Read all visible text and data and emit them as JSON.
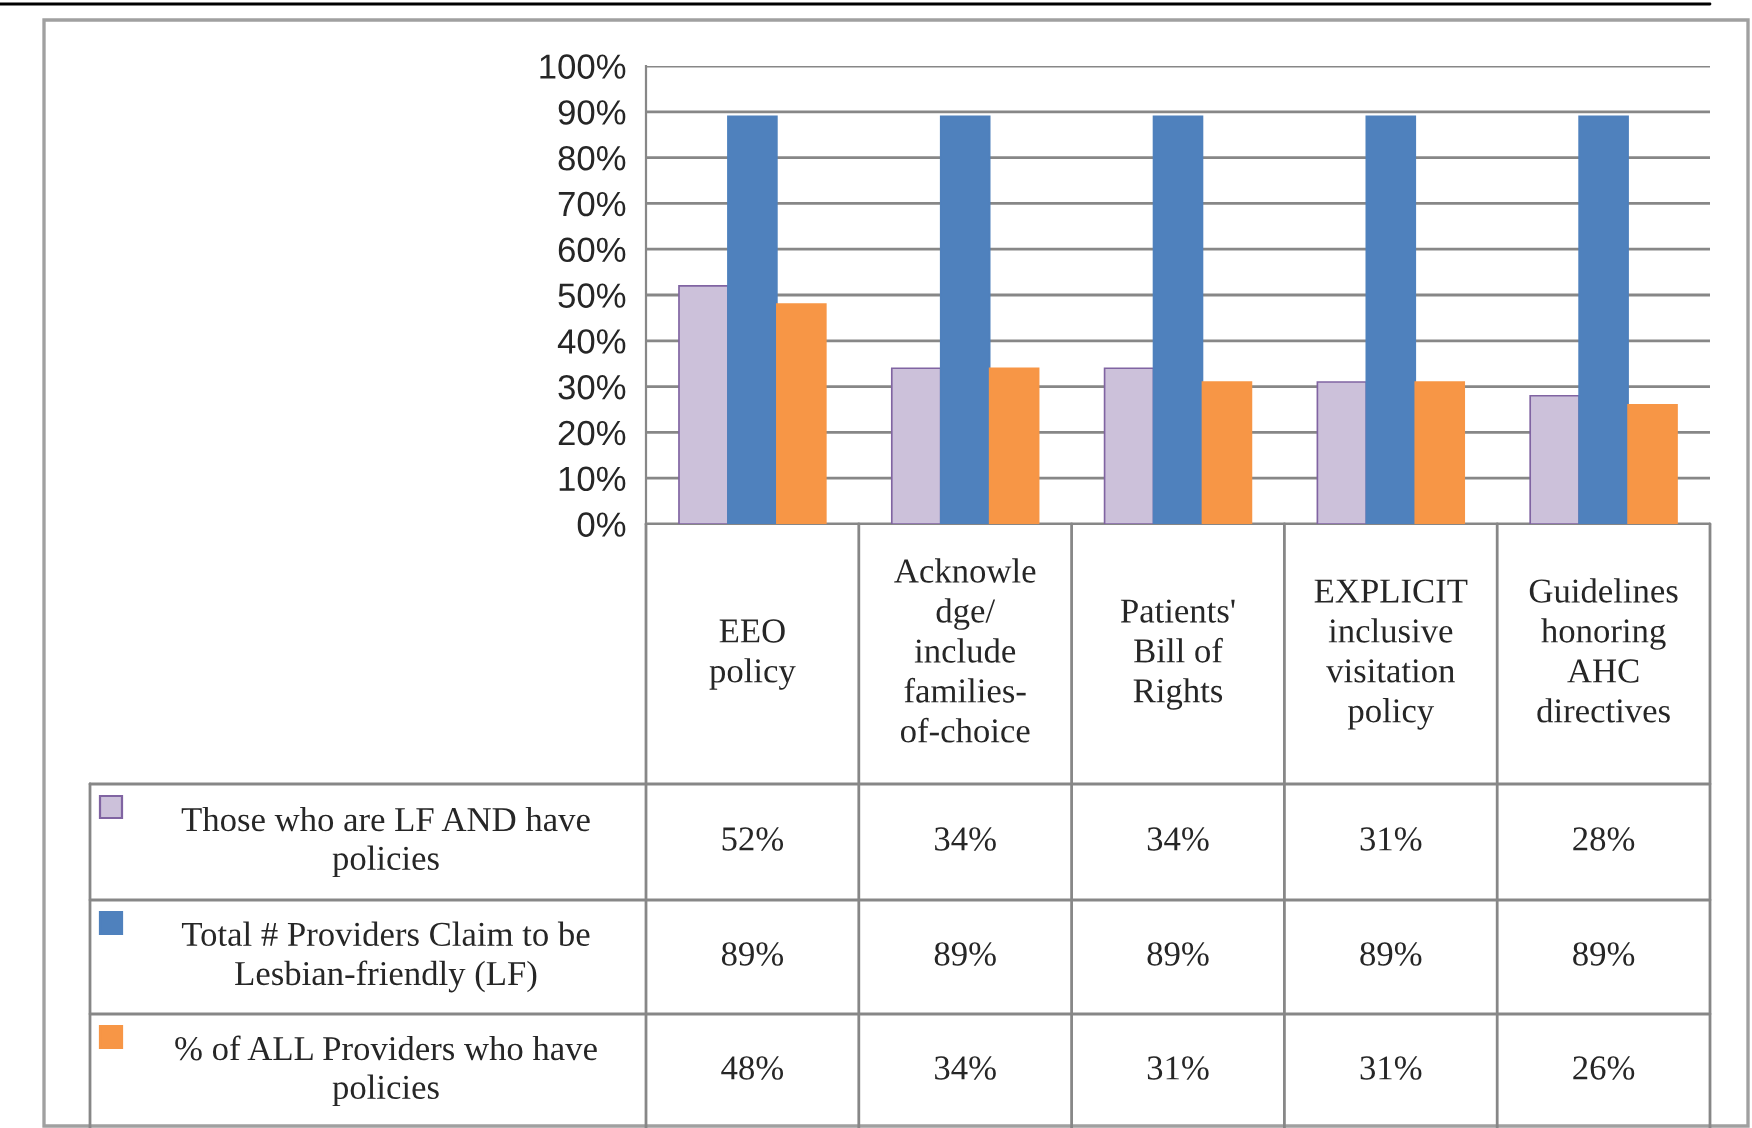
{
  "chart_data": {
    "type": "bar",
    "categories": [
      "EEO\npolicy",
      "Acknowle\ndge/\ninclude\nfamilies-\nof-choice",
      "Patients'\nBill of\nRights",
      "EXPLICIT\ninclusive\nvisitation\npolicy",
      "Guidelines\nhonoring\nAHC\ndirectives"
    ],
    "series": [
      {
        "name": "Those who are LF AND have\npolicies",
        "color": "#ccc1da",
        "values": [
          52,
          34,
          34,
          31,
          28
        ],
        "value_labels": [
          "52%",
          "34%",
          "34%",
          "31%",
          "28%"
        ]
      },
      {
        "name": "Total # Providers Claim to be\nLesbian-friendly (LF)",
        "color": "#4f81bd",
        "values": [
          89,
          89,
          89,
          89,
          89
        ],
        "value_labels": [
          "89%",
          "89%",
          "89%",
          "89%",
          "89%"
        ]
      },
      {
        "name": "% of ALL Providers who have\npolicies",
        "color": "#f79646",
        "values": [
          48,
          34,
          31,
          31,
          26
        ],
        "value_labels": [
          "48%",
          "34%",
          "31%",
          "31%",
          "26%"
        ]
      }
    ],
    "ylim": [
      0,
      100
    ],
    "yticks": [
      {
        "value": 0,
        "label": "0%"
      },
      {
        "value": 10,
        "label": "10%"
      },
      {
        "value": 20,
        "label": "20%"
      },
      {
        "value": 30,
        "label": "30%"
      },
      {
        "value": 40,
        "label": "40%"
      },
      {
        "value": 50,
        "label": "50%"
      },
      {
        "value": 60,
        "label": "60%"
      },
      {
        "value": 70,
        "label": "70%"
      },
      {
        "value": 80,
        "label": "80%"
      },
      {
        "value": 90,
        "label": "90%"
      },
      {
        "value": 100,
        "label": "100%"
      }
    ],
    "grid": "y",
    "legend": "bottom left"
  }
}
